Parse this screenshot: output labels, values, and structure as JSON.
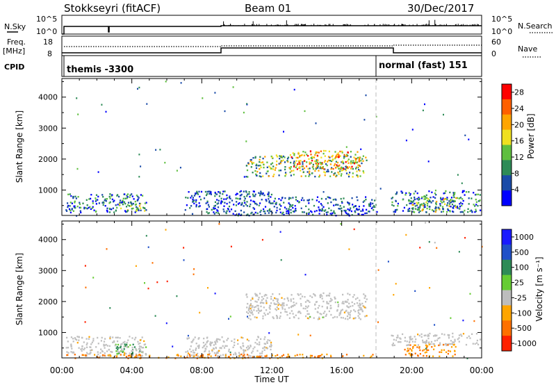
{
  "header": {
    "station": "Stokkseyri (fitACF)",
    "beam": "Beam 01",
    "date": "30/Dec/2017"
  },
  "status_panel": {
    "left_labels": {
      "nsky": "N.Sky",
      "freq_top": "Freq.",
      "freq_unit": "[MHz]",
      "cpid": "CPID"
    },
    "right_labels": {
      "nsearch": "N.Search",
      "nave": "Nave"
    },
    "nsky_ticks": {
      "top": "10^5",
      "bottom": "10^0"
    },
    "nsearch_ticks": {
      "top": "10^5",
      "bottom": "10^0"
    },
    "freq_ticks": {
      "top": "18",
      "bottom": "8"
    },
    "nave_ticks": {
      "top": "60",
      "bottom": "0"
    },
    "cpid_segments": [
      {
        "label": "themis -3300",
        "start_hour": 0.0
      },
      {
        "label": "normal (fast) 151",
        "start_hour": 18.0
      }
    ]
  },
  "x_axis": {
    "label": "Time UT",
    "ticks": [
      "00:00",
      "04:00",
      "08:00",
      "12:00",
      "16:00",
      "20:00",
      "00:00"
    ]
  },
  "chart_data": [
    {
      "type": "heatmap",
      "name": "power",
      "xlim_hours": [
        0,
        24
      ],
      "ylabel": "Slant Range [km]",
      "ylim_km": [
        180,
        4600
      ],
      "y_ticks": [
        1000,
        2000,
        3000,
        4000
      ],
      "colorbar": {
        "label": "Power [dB]",
        "ticks": [
          "4",
          "8",
          "12",
          "16",
          "20",
          "24",
          "28"
        ],
        "range": [
          0,
          30
        ]
      },
      "clusters": [
        {
          "t0": 10.5,
          "t1": 17.4,
          "r0": 1450,
          "r1": 2150,
          "level": "high"
        },
        {
          "t0": 13.0,
          "t1": 17.0,
          "r0": 1700,
          "r1": 2300,
          "level": "peak"
        },
        {
          "t0": 0.2,
          "t1": 4.8,
          "r0": 300,
          "r1": 900,
          "level": "mid"
        },
        {
          "t0": 3.2,
          "t1": 4.8,
          "r0": 350,
          "r1": 650,
          "level": "high"
        },
        {
          "t0": 7.0,
          "t1": 12.0,
          "r0": 200,
          "r1": 1000,
          "level": "low"
        },
        {
          "t0": 12.0,
          "t1": 18.0,
          "r0": 200,
          "r1": 800,
          "level": "low"
        },
        {
          "t0": 18.8,
          "t1": 23.9,
          "r0": 300,
          "r1": 1000,
          "level": "mid"
        },
        {
          "t0": 20.0,
          "t1": 22.5,
          "r0": 300,
          "r1": 800,
          "level": "high"
        }
      ]
    },
    {
      "type": "heatmap",
      "name": "velocity",
      "xlim_hours": [
        0,
        24
      ],
      "ylabel": "Slant Range [km]",
      "ylim_km": [
        180,
        4600
      ],
      "y_ticks": [
        1000,
        2000,
        3000,
        4000
      ],
      "colorbar": {
        "label": "Velocity [m s⁻¹]",
        "ticks": [
          "1000",
          "500",
          "100",
          "25",
          "-25",
          "-100",
          "-500",
          "-1000"
        ]
      },
      "clusters": [
        {
          "t0": 10.5,
          "t1": 17.4,
          "r0": 1450,
          "r1": 2300,
          "level": "gray"
        },
        {
          "t0": 3.0,
          "t1": 4.8,
          "r0": 300,
          "r1": 650,
          "level": "green"
        },
        {
          "t0": 0.2,
          "t1": 4.8,
          "r0": 250,
          "r1": 900,
          "level": "gray"
        },
        {
          "t0": 7.0,
          "t1": 12.0,
          "r0": 200,
          "r1": 900,
          "level": "gray"
        },
        {
          "t0": 18.8,
          "t1": 23.9,
          "r0": 600,
          "r1": 1000,
          "level": "gray"
        },
        {
          "t0": 19.5,
          "t1": 22.5,
          "r0": 250,
          "r1": 650,
          "level": "orange"
        },
        {
          "t0": 0.2,
          "t1": 18.0,
          "r0": 190,
          "r1": 320,
          "level": "orange"
        }
      ]
    }
  ],
  "colors": {
    "power_scale": [
      "#0000ff",
      "#1a4ba8",
      "#2e8b57",
      "#5fbf3f",
      "#f0e020",
      "#ffa500",
      "#ff6000",
      "#ff0000"
    ],
    "velocity_scale": [
      "#1a1aff",
      "#2050c8",
      "#2e8b57",
      "#66cc33",
      "#bdbdbd",
      "#ffa500",
      "#ff7000",
      "#ff2000"
    ],
    "gray": "#c0c0c0"
  }
}
